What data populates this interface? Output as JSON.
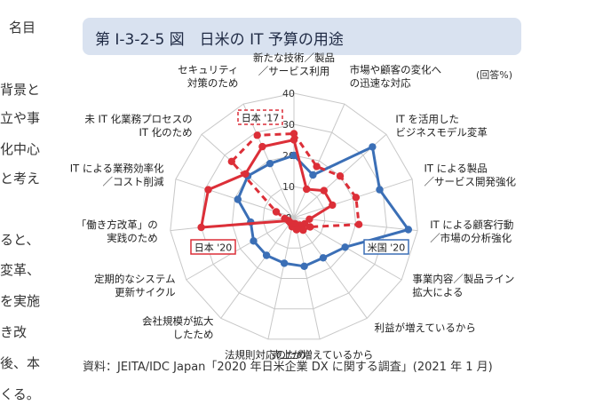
{
  "body_fragments": [
    "名目",
    "背景と",
    "立や事",
    "化中心",
    "と考え",
    "ると、",
    "変革、",
    "を実施",
    "き改",
    "後、本",
    "くる。"
  ],
  "figure": {
    "title": "第 I-3-2-5 図　日米の IT 予算の用途",
    "note": "(回答%)",
    "source": "資料：JEITA/IDC Japan「2020 年日米企業 DX に関する調査」(2021 年 1 月)"
  },
  "chart_data": {
    "type": "radar",
    "rmax": 40,
    "ticks": [
      0,
      10,
      20,
      30,
      40
    ],
    "categories": [
      "新たな技術／製品／サービス利用",
      "市場や顧客の変化への迅速な対応",
      "IT を活用したビジネスモデル変革",
      "IT による製品／サービス開発強化",
      "IT による顧客行動／市場の分析強化",
      "事業内容／製品ライン拡大による",
      "利益が増えているから",
      "売上が増えているから",
      "法規則対応のため",
      "会社規模が拡大したため",
      "定期的なシステム更新サイクル",
      "「働き方改革」の実践のため",
      "IT による業務効率化／コスト削減",
      "未 IT 化業務プロセスの IT 化のため",
      "セキュリティ対策のため"
    ],
    "category_labels": [
      [
        "新たな技術／製品",
        "／サービス利用"
      ],
      [
        "市場や顧客の変化へ",
        "の迅速な対応"
      ],
      [
        "IT を活用した",
        "ビジネスモデル変革"
      ],
      [
        "IT による製品",
        "／サービス開発強化"
      ],
      [
        "IT による顧客行動",
        "／市場の分析強化"
      ],
      [
        "事業内容／製品ライン",
        "拡大による"
      ],
      [
        "利益が増えているから"
      ],
      [
        "売上が増えているから"
      ],
      [
        "法規則対応のため"
      ],
      [
        "会社規模が拡大",
        "したため"
      ],
      [
        "定期的なシステム",
        "更新サイクル"
      ],
      [
        "「働き方改革」の",
        "実践のため"
      ],
      [
        "IT による業務効率化",
        "／コスト削減"
      ],
      [
        "未 IT 化業務プロセスの",
        "IT 化のため"
      ],
      [
        "セキュリティ",
        "対策のため"
      ]
    ],
    "series": [
      {
        "name": "米国 '20",
        "color": "#3b6fb6",
        "style": "solid",
        "values": [
          20,
          15,
          34,
          29,
          37,
          19,
          16,
          16,
          15,
          15,
          15,
          14,
          19,
          20,
          19
        ]
      },
      {
        "name": "日本 '20",
        "color": "#dc2f38",
        "style": "solid",
        "values": [
          25,
          10,
          13,
          13,
          5,
          4,
          3,
          4,
          3,
          2,
          2,
          30,
          29,
          21,
          25
        ]
      },
      {
        "name": "日本 '17",
        "color": "#dc2f38",
        "style": "dashed",
        "values": [
          27,
          18,
          20,
          21,
          21,
          6,
          5,
          2,
          2,
          2,
          2,
          3,
          6,
          27,
          29
        ]
      }
    ],
    "legend_boxes": [
      {
        "label": "日本 '17",
        "color": "#dc2f38",
        "style": "dashed"
      },
      {
        "label": "日本 '20",
        "color": "#dc2f38",
        "style": "solid"
      },
      {
        "label": "米国 '20",
        "color": "#3b6fb6",
        "style": "solid"
      }
    ]
  }
}
